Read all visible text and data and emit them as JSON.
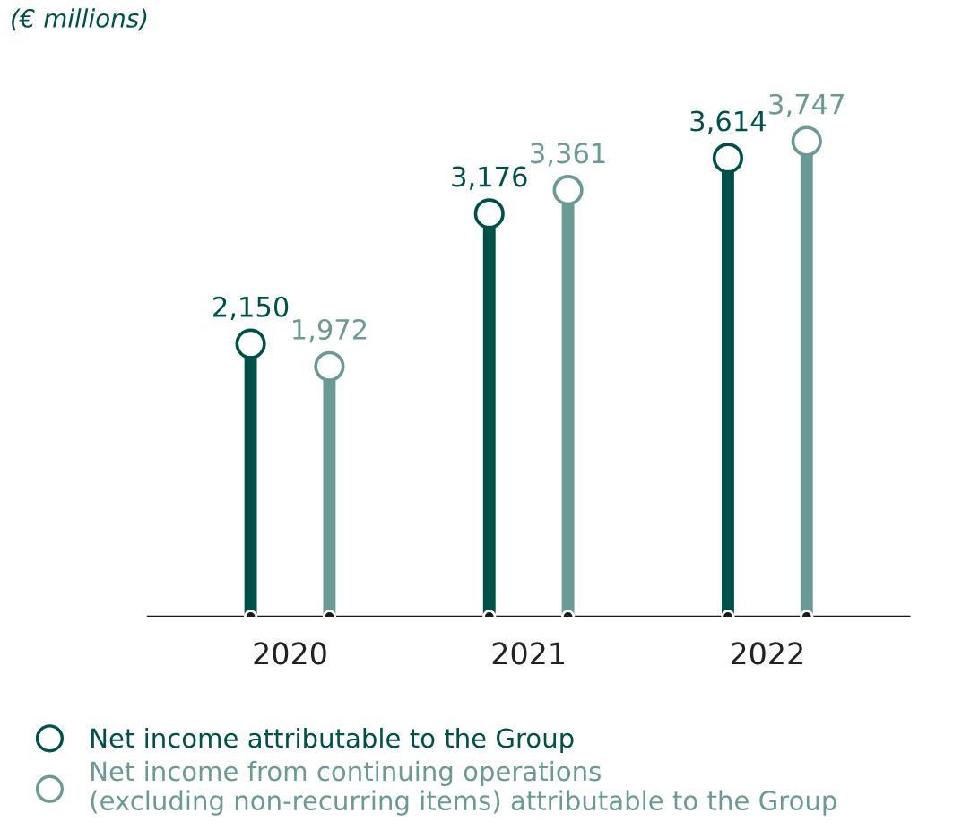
{
  "chart_data": {
    "type": "lollipop",
    "title": "(€ millions)",
    "categories": [
      "2020",
      "2021",
      "2022"
    ],
    "series": [
      {
        "name": "Net income attributable to the Group",
        "color": "#00504a",
        "values": [
          2150,
          3176,
          3614
        ],
        "value_labels": [
          "2,150",
          "3,176",
          "3,614"
        ]
      },
      {
        "name": "Net income from continuing operations\n(excluding non-recurring items) attributable to the Group",
        "color": "#6b9a94",
        "values": [
          1972,
          3361,
          3747
        ],
        "value_labels": [
          "1,972",
          "3,361",
          "3,747"
        ]
      }
    ],
    "marker": "circle",
    "legend": "bottom left",
    "grid": false
  }
}
